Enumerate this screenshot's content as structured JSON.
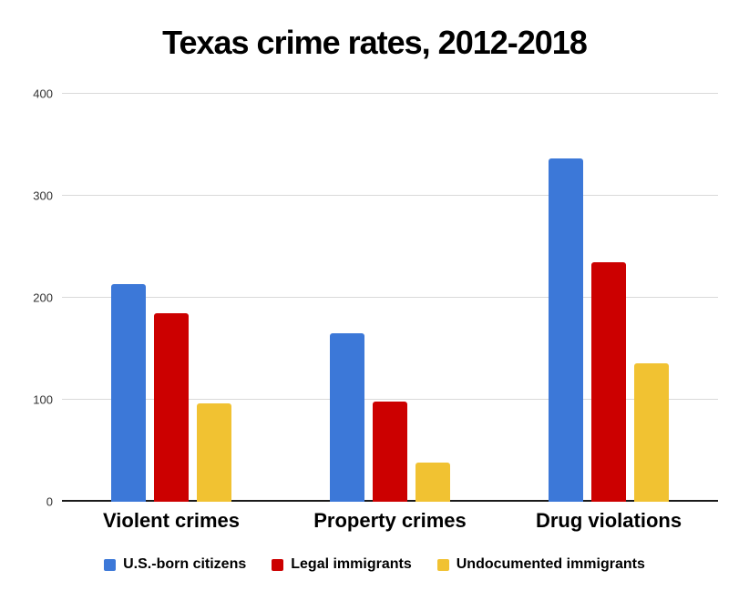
{
  "chart_data": {
    "type": "bar",
    "title": "Texas crime rates, 2012-2018",
    "categories": [
      "Violent crimes",
      "Property crimes",
      "Drug violations"
    ],
    "series": [
      {
        "name": "U.S.-born citizens",
        "color": "#3c78d8",
        "values": [
          213,
          165,
          337
        ]
      },
      {
        "name": "Legal immigrants",
        "color": "#cc0000",
        "values": [
          185,
          98,
          235
        ]
      },
      {
        "name": "Undocumented immigrants",
        "color": "#f1c232",
        "values": [
          96,
          38,
          136
        ]
      }
    ],
    "xlabel": "",
    "ylabel": "",
    "ylim": [
      0,
      400
    ],
    "yticks": [
      0,
      100,
      200,
      300,
      400
    ],
    "grid": true,
    "gridline_color": "#d9d9d9",
    "axis_color": "#1a1a1a",
    "legend_position": "bottom"
  }
}
